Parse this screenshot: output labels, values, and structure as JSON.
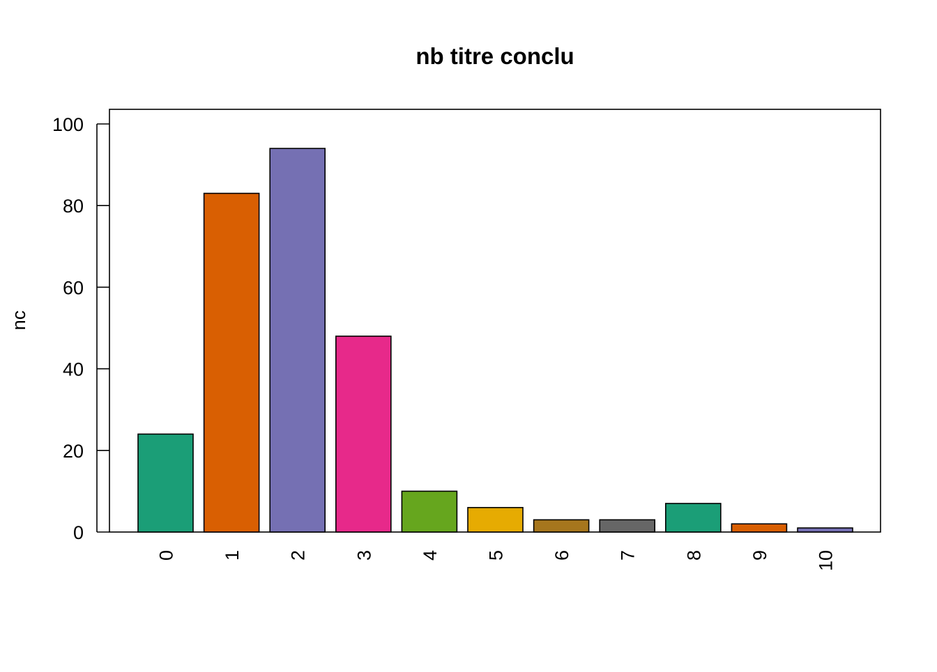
{
  "chart_data": {
    "type": "bar",
    "title": "nb titre conclu",
    "xlabel": "",
    "ylabel": "nc",
    "categories": [
      "0",
      "1",
      "2",
      "3",
      "4",
      "5",
      "6",
      "7",
      "8",
      "9",
      "10"
    ],
    "values": [
      24,
      83,
      94,
      48,
      10,
      6,
      3,
      3,
      7,
      2,
      1
    ],
    "colors": [
      "#1B9E77",
      "#D95F02",
      "#7570B3",
      "#E7298A",
      "#66A61E",
      "#E6AB02",
      "#A6761D",
      "#666666",
      "#1B9E77",
      "#D95F02",
      "#7570B3"
    ],
    "yticks": [
      0,
      20,
      40,
      60,
      80,
      100
    ],
    "ylim": [
      0,
      100
    ],
    "x_tick_rotation": "vertical",
    "grid": false,
    "legend": "none"
  }
}
